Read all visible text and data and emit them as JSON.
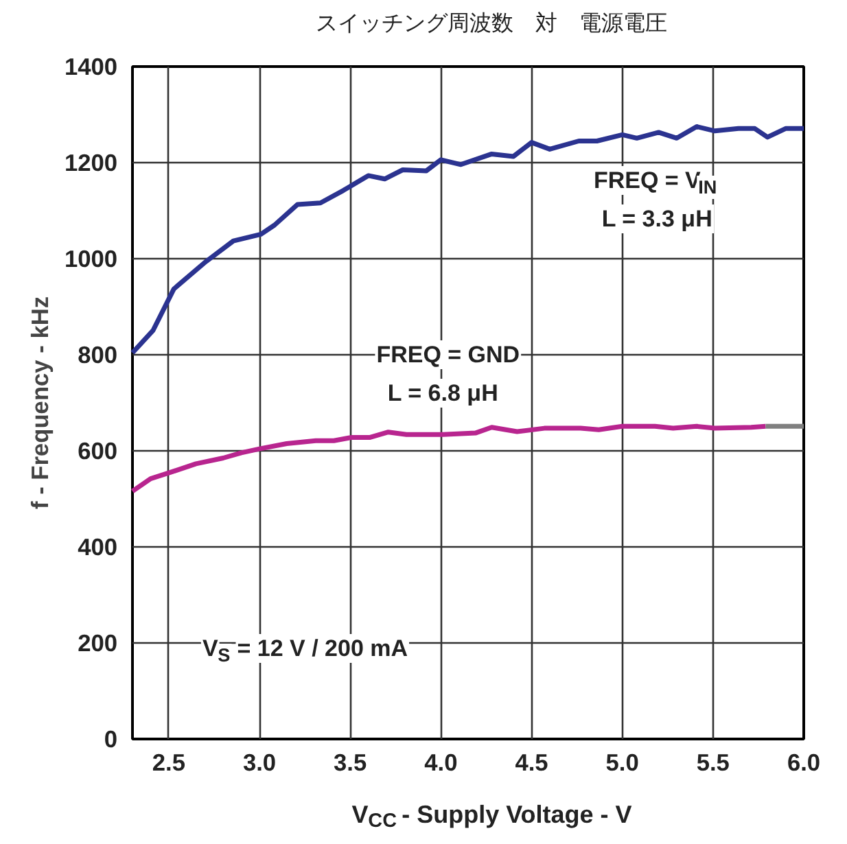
{
  "chart_data": {
    "type": "line",
    "title": "スイッチング周波数　対　電源電圧",
    "xlabel": "V$_{CC}$ - Supply Voltage - V",
    "ylabel": "f - Frequency - kHz",
    "x": [
      2.3,
      2.414,
      2.528,
      2.705,
      2.856,
      3.008,
      3.083,
      3.21,
      3.336,
      3.462,
      3.6,
      3.69,
      3.79,
      3.92,
      4.0,
      4.11,
      4.28,
      4.4,
      4.5,
      4.6,
      4.76,
      4.86,
      5.0,
      5.08,
      5.2,
      5.3,
      5.41,
      5.51,
      5.64,
      5.73,
      5.8,
      5.9,
      6.0
    ],
    "series": [
      {
        "color": "#2b3390",
        "values": [
          804,
          851,
          937,
          994,
          1037,
          1051,
          1070,
          1113,
          1116,
          1142,
          1173,
          1166,
          1185,
          1183,
          1206,
          1196,
          1218,
          1213,
          1242,
          1228,
          1245,
          1245,
          1258,
          1251,
          1263,
          1251,
          1275,
          1266,
          1271,
          1271,
          1253,
          1271,
          1271
        ]
      },
      {
        "color": "#b8258f",
        "x": [
          2.3,
          2.4,
          2.5,
          2.65,
          2.8,
          2.9,
          3.0,
          3.15,
          3.31,
          3.41,
          3.51,
          3.61,
          3.71,
          3.81,
          4.01,
          4.19,
          4.28,
          4.42,
          4.57,
          4.77,
          4.87,
          5.0,
          5.18,
          5.28,
          5.41,
          5.51,
          5.71,
          5.79
        ],
        "values": [
          516,
          542,
          554,
          573,
          585,
          596,
          604,
          615,
          621,
          621,
          628,
          628,
          639,
          634,
          634,
          637,
          649,
          640,
          647,
          647,
          644,
          651,
          651,
          647,
          651,
          647,
          649,
          651
        ]
      },
      {
        "color": "#808080",
        "x": [
          5.79,
          6.0
        ],
        "values": [
          651,
          651
        ]
      }
    ],
    "annotations": [
      "FREQ = V$_{IN}$\nL = 3.3 μH",
      "FREQ = GND\nL = 6.8 μH",
      "V$_{S}$ = 12 V / 200 mA"
    ],
    "xlim": [
      2.3,
      6.0
    ],
    "ylim": [
      0,
      1400
    ],
    "xticks": [
      2.5,
      {
        "value": 3.0,
        "label": "3.0"
      },
      3.5,
      {
        "value": 4.0,
        "label": "4.0"
      },
      4.5,
      {
        "value": 5.0,
        "label": "5.0"
      },
      5.5,
      {
        "value": 6.0,
        "label": "6.0"
      }
    ],
    "yticks": [
      0,
      200,
      400,
      600,
      800,
      1000,
      1200,
      1400
    ],
    "grid": true,
    "marker": "none",
    "line_style": "solid"
  }
}
